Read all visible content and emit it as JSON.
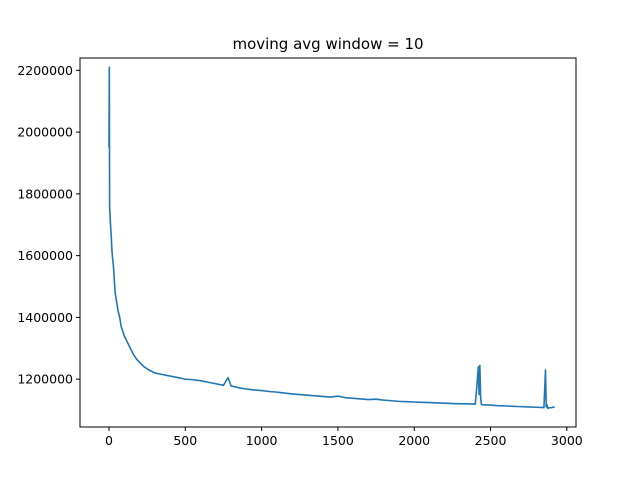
{
  "chart_data": {
    "type": "line",
    "title": "moving avg window = 10",
    "xlabel": "",
    "ylabel": "",
    "xlim": [
      -190,
      3060
    ],
    "ylim": [
      1045000,
      2240000
    ],
    "xticks": [
      0,
      500,
      1000,
      1500,
      2000,
      2500,
      3000
    ],
    "xtick_labels": [
      "0",
      "500",
      "1000",
      "1500",
      "2000",
      "2500",
      "3000"
    ],
    "yticks": [
      1200000,
      1400000,
      1600000,
      1800000,
      2000000,
      2200000
    ],
    "ytick_labels": [
      "1200000",
      "1400000",
      "1600000",
      "1800000",
      "2000000",
      "2200000"
    ],
    "grid": false,
    "legend": "none",
    "line_color": "#1f77b4",
    "series": [
      {
        "x": [
          0,
          2,
          4,
          6,
          10,
          15,
          20,
          30,
          40,
          50,
          60,
          70,
          80,
          100,
          120,
          140,
          160,
          180,
          200,
          230,
          260,
          300,
          350,
          400,
          450,
          500,
          550,
          600,
          650,
          700,
          750,
          780,
          800,
          850,
          900,
          950,
          1000,
          1050,
          1100,
          1150,
          1200,
          1250,
          1300,
          1350,
          1400,
          1450,
          1500,
          1550,
          1600,
          1650,
          1700,
          1750,
          1800,
          1850,
          1900,
          1950,
          2000,
          2050,
          2100,
          2150,
          2200,
          2250,
          2300,
          2350,
          2400,
          2410,
          2420,
          2425,
          2430,
          2435,
          2440,
          2450,
          2500,
          2550,
          2600,
          2650,
          2700,
          2750,
          2800,
          2850,
          2860,
          2865,
          2870,
          2875,
          2880,
          2900,
          2920
        ],
        "y": [
          1950000,
          2210000,
          1760000,
          1740000,
          1700000,
          1660000,
          1610000,
          1560000,
          1480000,
          1450000,
          1420000,
          1400000,
          1370000,
          1340000,
          1320000,
          1300000,
          1280000,
          1265000,
          1255000,
          1240000,
          1230000,
          1220000,
          1215000,
          1210000,
          1205000,
          1200000,
          1198000,
          1195000,
          1190000,
          1185000,
          1180000,
          1205000,
          1178000,
          1172000,
          1168000,
          1165000,
          1163000,
          1160000,
          1158000,
          1155000,
          1152000,
          1150000,
          1148000,
          1146000,
          1144000,
          1142000,
          1145000,
          1140000,
          1138000,
          1136000,
          1134000,
          1135000,
          1132000,
          1130000,
          1128000,
          1127000,
          1126000,
          1125000,
          1124000,
          1123000,
          1122000,
          1121000,
          1120000,
          1120000,
          1119000,
          1175000,
          1240000,
          1150000,
          1245000,
          1140000,
          1118000,
          1117000,
          1116000,
          1114000,
          1113000,
          1112000,
          1111000,
          1110000,
          1109000,
          1108000,
          1230000,
          1110000,
          1118000,
          1105000,
          1107000,
          1108000,
          1110000
        ]
      }
    ]
  }
}
